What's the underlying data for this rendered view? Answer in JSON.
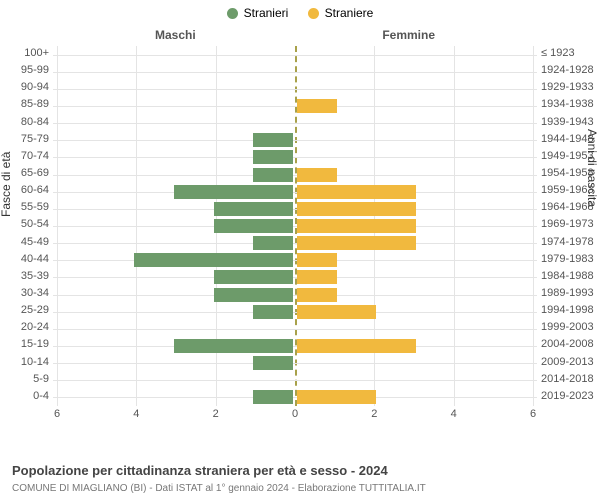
{
  "legend": {
    "series": [
      {
        "label": "Stranieri",
        "color": "#6d9b6a"
      },
      {
        "label": "Straniere",
        "color": "#f1b93e"
      }
    ]
  },
  "gender_labels": {
    "left": "Maschi",
    "right": "Femmine"
  },
  "yaxis": {
    "left_title": "Fasce di età",
    "right_title": "Anni di nascita"
  },
  "pyramid": {
    "type": "population-pyramid",
    "x_max": 6,
    "x_ticks": [
      6,
      4,
      2,
      0,
      2,
      4,
      6
    ],
    "bar_color_left": "#6d9b6a",
    "bar_color_right": "#f1b93e",
    "grid_color": "#e4e4e4",
    "centerline_color": "#a8a14a",
    "background": "#ffffff",
    "rows": [
      {
        "age": "100+",
        "birth": "≤ 1923",
        "m": 0,
        "f": 0
      },
      {
        "age": "95-99",
        "birth": "1924-1928",
        "m": 0,
        "f": 0
      },
      {
        "age": "90-94",
        "birth": "1929-1933",
        "m": 0,
        "f": 0
      },
      {
        "age": "85-89",
        "birth": "1934-1938",
        "m": 0,
        "f": 1
      },
      {
        "age": "80-84",
        "birth": "1939-1943",
        "m": 0,
        "f": 0
      },
      {
        "age": "75-79",
        "birth": "1944-1948",
        "m": 1,
        "f": 0
      },
      {
        "age": "70-74",
        "birth": "1949-1953",
        "m": 1,
        "f": 0
      },
      {
        "age": "65-69",
        "birth": "1954-1958",
        "m": 1,
        "f": 1
      },
      {
        "age": "60-64",
        "birth": "1959-1963",
        "m": 3,
        "f": 3
      },
      {
        "age": "55-59",
        "birth": "1964-1968",
        "m": 2,
        "f": 3
      },
      {
        "age": "50-54",
        "birth": "1969-1973",
        "m": 2,
        "f": 3
      },
      {
        "age": "45-49",
        "birth": "1974-1978",
        "m": 1,
        "f": 3
      },
      {
        "age": "40-44",
        "birth": "1979-1983",
        "m": 4,
        "f": 1
      },
      {
        "age": "35-39",
        "birth": "1984-1988",
        "m": 2,
        "f": 1
      },
      {
        "age": "30-34",
        "birth": "1989-1993",
        "m": 2,
        "f": 1
      },
      {
        "age": "25-29",
        "birth": "1994-1998",
        "m": 1,
        "f": 2
      },
      {
        "age": "20-24",
        "birth": "1999-2003",
        "m": 0,
        "f": 0
      },
      {
        "age": "15-19",
        "birth": "2004-2008",
        "m": 3,
        "f": 3
      },
      {
        "age": "10-14",
        "birth": "2009-2013",
        "m": 1,
        "f": 0
      },
      {
        "age": "5-9",
        "birth": "2014-2018",
        "m": 0,
        "f": 0
      },
      {
        "age": "0-4",
        "birth": "2019-2023",
        "m": 1,
        "f": 2
      }
    ]
  },
  "caption": {
    "title": "Popolazione per cittadinanza straniera per età e sesso - 2024",
    "sub": "COMUNE DI MIAGLIANO (BI) - Dati ISTAT al 1° gennaio 2024 - Elaborazione TUTTITALIA.IT"
  }
}
